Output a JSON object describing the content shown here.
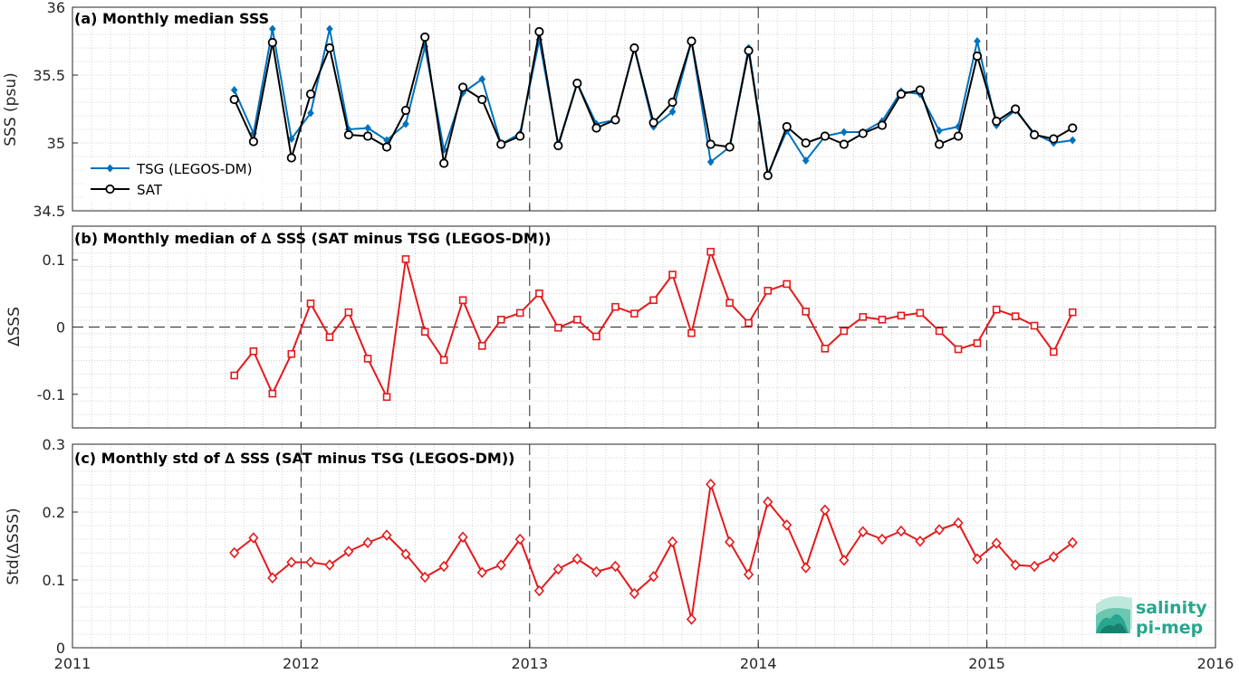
{
  "colors": {
    "tsg": "#0072bd",
    "sat": "#000000",
    "delta": "#e41a1c",
    "logo": "#2aa58f"
  },
  "logo": {
    "line1": "salinity",
    "line2": "pi-mep"
  },
  "x_axis": {
    "ticks": [
      2011,
      2012,
      2013,
      2014,
      2015,
      2016
    ],
    "range": [
      2011,
      2016
    ],
    "minor_step": 0.0833333
  },
  "chart_data": [
    {
      "type": "line",
      "title": "(a) Monthly median SSS",
      "ylabel": "SSS (psu)",
      "ylim": [
        34.5,
        36
      ],
      "yticks": [
        34.5,
        35,
        35.5,
        36
      ],
      "ytick_labels": [
        "34.5",
        "35",
        "35.5",
        "36"
      ],
      "grid": true,
      "legend_position": "bottom-left",
      "x": [
        2011.708,
        2011.792,
        2011.875,
        2011.958,
        2012.042,
        2012.125,
        2012.208,
        2012.292,
        2012.375,
        2012.458,
        2012.542,
        2012.625,
        2012.708,
        2012.792,
        2012.875,
        2012.958,
        2013.042,
        2013.125,
        2013.208,
        2013.292,
        2013.375,
        2013.458,
        2013.542,
        2013.625,
        2013.708,
        2013.792,
        2013.875,
        2013.958,
        2014.042,
        2014.125,
        2014.208,
        2014.292,
        2014.375,
        2014.458,
        2014.542,
        2014.625,
        2014.708,
        2014.792,
        2014.875,
        2014.958,
        2015.042,
        2015.125,
        2015.208,
        2015.292,
        2015.375
      ],
      "series": [
        {
          "name": "TSG (LEGOS-DM)",
          "marker": "filled-diamond",
          "values": [
            35.39,
            35.07,
            35.84,
            35.03,
            35.22,
            35.84,
            35.1,
            35.11,
            35.02,
            35.14,
            35.71,
            34.95,
            35.37,
            35.47,
            34.99,
            35.07,
            35.76,
            34.99,
            35.44,
            35.14,
            35.17,
            35.7,
            35.12,
            35.23,
            35.75,
            34.86,
            34.97,
            35.7,
            34.77,
            35.09,
            34.87,
            35.05,
            35.08,
            35.08,
            35.16,
            35.38,
            35.36,
            35.09,
            35.12,
            35.75,
            35.13,
            35.24,
            35.07,
            35.0,
            35.02
          ]
        },
        {
          "name": "SAT",
          "marker": "open-circle",
          "values": [
            35.32,
            35.01,
            35.74,
            34.89,
            35.36,
            35.7,
            35.06,
            35.05,
            34.97,
            35.24,
            35.78,
            34.85,
            35.41,
            35.32,
            34.99,
            35.05,
            35.82,
            34.98,
            35.44,
            35.11,
            35.17,
            35.7,
            35.15,
            35.3,
            35.75,
            34.99,
            34.97,
            35.68,
            34.76,
            35.12,
            35.0,
            35.05,
            34.99,
            35.07,
            35.13,
            35.36,
            35.39,
            34.99,
            35.05,
            35.64,
            35.16,
            35.25,
            35.06,
            35.03,
            35.11
          ]
        }
      ]
    },
    {
      "type": "line",
      "title": "(b) Monthly median of ∆ SSS (SAT minus TSG (LEGOS-DM))",
      "ylabel": "∆SSS",
      "ylim": [
        -0.15,
        0.15
      ],
      "yticks": [
        -0.1,
        0,
        0.1
      ],
      "ytick_labels": [
        "-0.1",
        "0",
        "0.1"
      ],
      "zero_line": true,
      "grid": true,
      "x": [
        2011.708,
        2011.792,
        2011.875,
        2011.958,
        2012.042,
        2012.125,
        2012.208,
        2012.292,
        2012.375,
        2012.458,
        2012.542,
        2012.625,
        2012.708,
        2012.792,
        2012.875,
        2012.958,
        2013.042,
        2013.125,
        2013.208,
        2013.292,
        2013.375,
        2013.458,
        2013.542,
        2013.625,
        2013.708,
        2013.792,
        2013.875,
        2013.958,
        2014.042,
        2014.125,
        2014.208,
        2014.292,
        2014.375,
        2014.458,
        2014.542,
        2014.625,
        2014.708,
        2014.792,
        2014.875,
        2014.958,
        2015.042,
        2015.125,
        2015.208,
        2015.292,
        2015.375
      ],
      "series": [
        {
          "marker": "open-square",
          "values": [
            -0.072,
            -0.036,
            -0.099,
            -0.04,
            0.035,
            -0.015,
            0.022,
            -0.047,
            -0.104,
            0.101,
            -0.007,
            -0.049,
            0.04,
            -0.028,
            0.011,
            0.021,
            0.05,
            -0.001,
            0.011,
            -0.014,
            0.03,
            0.02,
            0.04,
            0.078,
            -0.009,
            0.112,
            0.036,
            0.006,
            0.054,
            0.064,
            0.023,
            -0.032,
            -0.006,
            0.015,
            0.011,
            0.017,
            0.021,
            -0.006,
            -0.033,
            -0.024,
            0.026,
            0.016,
            0.002,
            -0.037,
            0.022
          ]
        }
      ]
    },
    {
      "type": "line",
      "title": "(c) Monthly std of ∆ SSS (SAT minus TSG (LEGOS-DM))",
      "ylabel": "Std(∆SSS)",
      "ylim": [
        0,
        0.3
      ],
      "yticks": [
        0,
        0.1,
        0.2,
        0.3
      ],
      "ytick_labels": [
        "0",
        "0.1",
        "0.2",
        "0.3"
      ],
      "grid": true,
      "x": [
        2011.708,
        2011.792,
        2011.875,
        2011.958,
        2012.042,
        2012.125,
        2012.208,
        2012.292,
        2012.375,
        2012.458,
        2012.542,
        2012.625,
        2012.708,
        2012.792,
        2012.875,
        2012.958,
        2013.042,
        2013.125,
        2013.208,
        2013.292,
        2013.375,
        2013.458,
        2013.542,
        2013.625,
        2013.708,
        2013.792,
        2013.875,
        2013.958,
        2014.042,
        2014.125,
        2014.208,
        2014.292,
        2014.375,
        2014.458,
        2014.542,
        2014.625,
        2014.708,
        2014.792,
        2014.875,
        2014.958,
        2015.042,
        2015.125,
        2015.208,
        2015.292,
        2015.375
      ],
      "series": [
        {
          "marker": "open-diamond",
          "values": [
            0.14,
            0.162,
            0.103,
            0.126,
            0.126,
            0.122,
            0.142,
            0.155,
            0.166,
            0.138,
            0.104,
            0.12,
            0.163,
            0.111,
            0.122,
            0.16,
            0.084,
            0.116,
            0.131,
            0.112,
            0.12,
            0.08,
            0.105,
            0.156,
            0.042,
            0.241,
            0.156,
            0.108,
            0.215,
            0.181,
            0.118,
            0.203,
            0.129,
            0.171,
            0.16,
            0.172,
            0.157,
            0.174,
            0.184,
            0.131,
            0.154,
            0.122,
            0.12,
            0.134,
            0.155
          ]
        }
      ]
    }
  ]
}
